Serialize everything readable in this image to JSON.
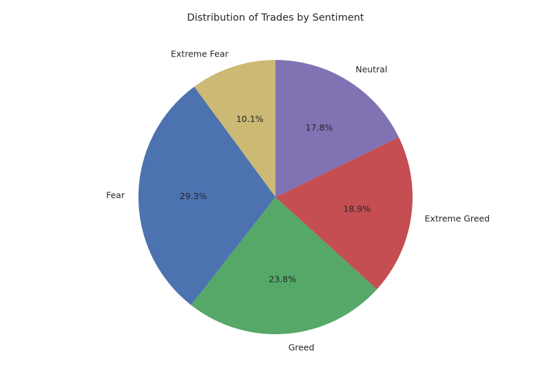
{
  "chart_data": {
    "type": "pie",
    "title": "Distribution of Trades by Sentiment",
    "categories": [
      "Extreme Fear",
      "Fear",
      "Greed",
      "Extreme Greed",
      "Neutral"
    ],
    "values": [
      10.1,
      29.3,
      23.8,
      18.9,
      17.8
    ],
    "percent_labels": [
      "10.1%",
      "29.3%",
      "23.8%",
      "18.9%",
      "17.8%"
    ],
    "colors": [
      "#ccb974",
      "#4c72b0",
      "#55a868",
      "#c44e52",
      "#8172b3"
    ],
    "start_angle_deg": 90,
    "direction": "counterclockwise"
  }
}
